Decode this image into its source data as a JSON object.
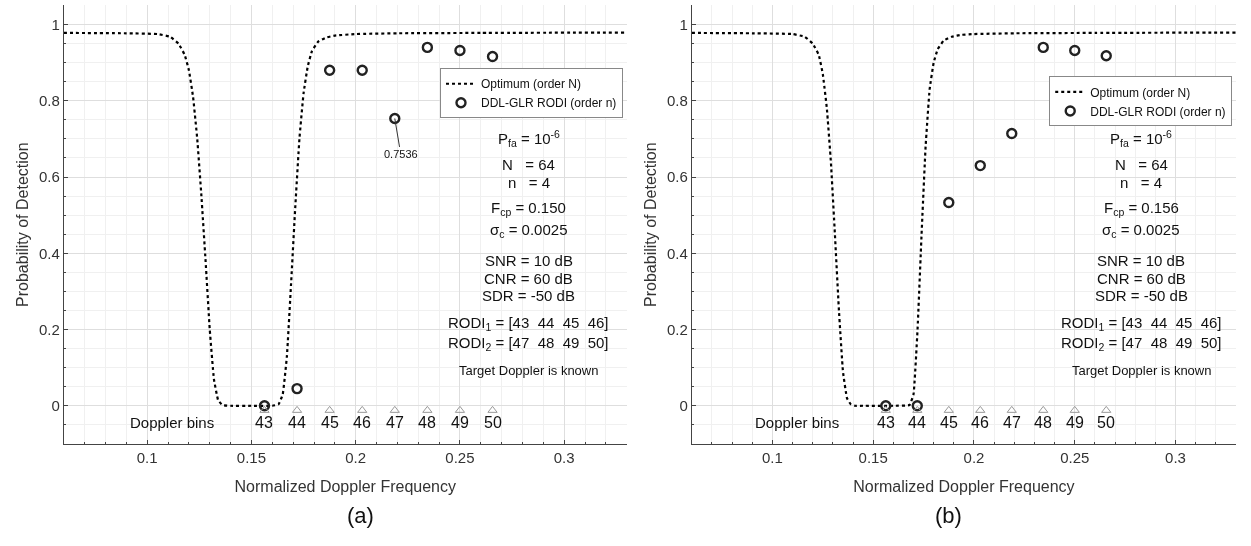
{
  "chart_data": [
    {
      "type": "scatter",
      "xlabel": "Normalized Doppler Frequency",
      "ylabel": "Probability of Detection",
      "xlim": [
        0.06,
        0.33
      ],
      "ylim": [
        -0.1,
        1.05
      ],
      "xticks": [
        0.1,
        0.15,
        0.2,
        0.25,
        0.3
      ],
      "yticks": [
        0,
        0.2,
        0.4,
        0.6,
        0.8,
        1
      ],
      "grid": true,
      "legend": "top right",
      "series": [
        {
          "name": "Optimum (order N)",
          "type": "line",
          "marker": "none",
          "line_style": "dotted",
          "color": "#000000",
          "x": [
            0.06,
            0.09,
            0.105,
            0.111,
            0.115,
            0.118,
            0.12,
            0.122,
            0.124,
            0.126,
            0.128,
            0.13,
            0.132,
            0.134,
            0.136,
            0.14,
            0.15,
            0.16,
            0.163,
            0.165,
            0.167,
            0.169,
            0.171,
            0.173,
            0.175,
            0.177,
            0.179,
            0.182,
            0.186,
            0.19,
            0.2,
            0.22,
            0.26,
            0.33
          ],
          "values": [
            0.978,
            0.977,
            0.975,
            0.968,
            0.95,
            0.92,
            0.88,
            0.81,
            0.7,
            0.55,
            0.38,
            0.2,
            0.07,
            0.015,
            0.002,
            0,
            0,
            0,
            0.004,
            0.03,
            0.13,
            0.32,
            0.52,
            0.7,
            0.82,
            0.89,
            0.93,
            0.955,
            0.966,
            0.971,
            0.975,
            0.977,
            0.978,
            0.979
          ]
        },
        {
          "name": "DDL-GLR RODI (order n)",
          "marker": "circle",
          "color": "#222222",
          "x": [
            0.15625,
            0.171875,
            0.1875,
            0.203125,
            0.21875,
            0.234375,
            0.25,
            0.265625
          ],
          "values": [
            0,
            0.045,
            0.88,
            0.88,
            0.7536,
            0.94,
            0.932,
            0.916
          ]
        },
        {
          "marker": "triangle",
          "color": "#999999",
          "x": [
            0.15625,
            0.171875,
            0.1875,
            0.203125,
            0.21875,
            0.234375,
            0.25,
            0.265625
          ],
          "values": [
            -0.012,
            -0.012,
            -0.012,
            -0.012,
            -0.012,
            -0.012,
            -0.012,
            -0.012
          ]
        }
      ],
      "annotations": [
        {
          "text": "0.7536",
          "x": 0.21875,
          "y": 0.7536
        },
        "Doppler bins",
        "43",
        "44",
        "45",
        "46",
        "47",
        "48",
        "49",
        "50",
        "P$_{fa}$ = 10$^{-6}$",
        "N   = 64",
        "n   = 4",
        "F$_{cp}$ = 0.150",
        "σ$_{c}$ = 0.0025",
        "SNR = 10 dB",
        "CNR = 60 dB",
        "SDR = -50 dB",
        "RODI$_{1}$ = [43  44  45  46]",
        "RODI$_{2}$ = [47  48  49  50]",
        "Target Doppler is known",
        "(a)"
      ]
    },
    {
      "type": "scatter",
      "xlabel": "Normalized Doppler Frequency",
      "ylabel": "Probability of Detection",
      "xlim": [
        0.06,
        0.33
      ],
      "ylim": [
        -0.1,
        1.05
      ],
      "xticks": [
        0.1,
        0.15,
        0.2,
        0.25,
        0.3
      ],
      "yticks": [
        0,
        0.2,
        0.4,
        0.6,
        0.8,
        1
      ],
      "grid": true,
      "legend": "top right",
      "series": [
        {
          "name": "Optimum (order N)",
          "type": "line",
          "marker": "none",
          "line_style": "dotted",
          "color": "#000000",
          "x": [
            0.06,
            0.09,
            0.11,
            0.116,
            0.12,
            0.123,
            0.125,
            0.127,
            0.129,
            0.131,
            0.133,
            0.135,
            0.137,
            0.139,
            0.141,
            0.145,
            0.16,
            0.168,
            0.17,
            0.172,
            0.174,
            0.176,
            0.178,
            0.18,
            0.182,
            0.185,
            0.189,
            0.194,
            0.2,
            0.22,
            0.26,
            0.33
          ],
          "values": [
            0.978,
            0.977,
            0.975,
            0.968,
            0.95,
            0.92,
            0.87,
            0.78,
            0.64,
            0.45,
            0.25,
            0.09,
            0.02,
            0.003,
            0,
            0,
            0,
            0.002,
            0.03,
            0.2,
            0.45,
            0.68,
            0.83,
            0.9,
            0.935,
            0.958,
            0.968,
            0.973,
            0.975,
            0.977,
            0.978,
            0.979
          ]
        },
        {
          "name": "DDL-GLR RODI (order n)",
          "marker": "circle",
          "color": "#222222",
          "x": [
            0.15625,
            0.171875,
            0.1875,
            0.203125,
            0.21875,
            0.234375,
            0.25,
            0.265625
          ],
          "values": [
            0,
            0,
            0.533,
            0.63,
            0.714,
            0.94,
            0.932,
            0.918
          ]
        },
        {
          "marker": "triangle",
          "color": "#999999",
          "x": [
            0.15625,
            0.171875,
            0.1875,
            0.203125,
            0.21875,
            0.234375,
            0.25,
            0.265625
          ],
          "values": [
            -0.012,
            -0.012,
            -0.012,
            -0.012,
            -0.012,
            -0.012,
            -0.012,
            -0.012
          ]
        }
      ],
      "annotations": [
        "Doppler bins",
        "43",
        "44",
        "45",
        "46",
        "47",
        "48",
        "49",
        "50",
        "P$_{fa}$ = 10$^{-6}$",
        "N   = 64",
        "n   = 4",
        "F$_{cp}$ = 0.156",
        "σ$_{c}$ = 0.0025",
        "SNR = 10 dB",
        "CNR = 60 dB",
        "SDR = -50 dB",
        "RODI$_{1}$ = [43  44  45  46]",
        "RODI$_{2}$ = [47  48  49  50]",
        "Target Doppler is known",
        "(b)"
      ]
    }
  ]
}
